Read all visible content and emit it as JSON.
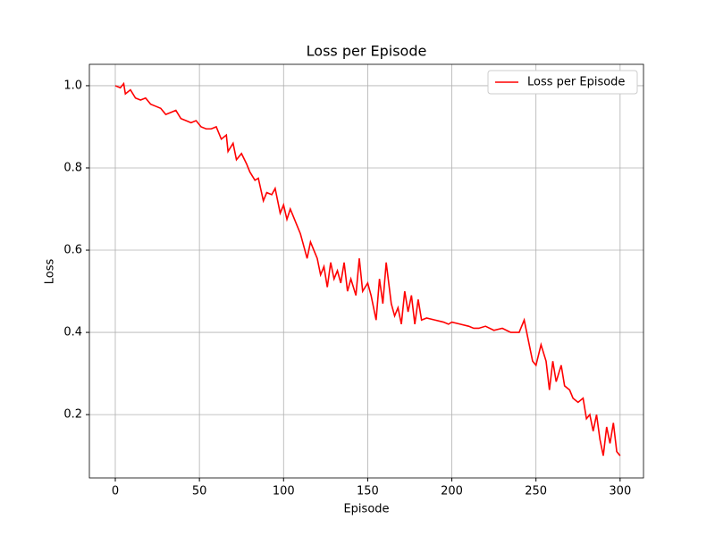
{
  "chart_data": {
    "type": "line",
    "title": "Loss per Episode",
    "x_label": "Episode",
    "y_label": "Loss",
    "x": [
      0,
      3,
      5,
      6,
      9,
      12,
      15,
      18,
      21,
      24,
      27,
      30,
      33,
      36,
      39,
      42,
      45,
      48,
      51,
      54,
      57,
      60,
      63,
      66,
      67,
      70,
      72,
      75,
      78,
      80,
      83,
      85,
      88,
      90,
      93,
      95,
      98,
      100,
      102,
      104,
      106,
      108,
      110,
      112,
      114,
      116,
      118,
      120,
      122,
      124,
      126,
      128,
      130,
      132,
      134,
      136,
      138,
      140,
      143,
      145,
      147,
      150,
      152,
      155,
      157,
      159,
      161,
      164,
      166,
      168,
      170,
      172,
      174,
      176,
      178,
      180,
      182,
      185,
      190,
      195,
      198,
      200,
      205,
      210,
      213,
      216,
      220,
      225,
      230,
      235,
      240,
      243,
      245,
      248,
      250,
      253,
      256,
      258,
      260,
      262,
      265,
      267,
      270,
      272,
      275,
      278,
      280,
      282,
      284,
      286,
      288,
      290,
      292,
      294,
      296,
      298,
      300
    ],
    "series": [
      {
        "name": "Loss per Episode",
        "color": "#ff0000",
        "values": [
          1.0,
          0.995,
          1.005,
          0.98,
          0.99,
          0.97,
          0.965,
          0.97,
          0.955,
          0.95,
          0.945,
          0.93,
          0.935,
          0.94,
          0.92,
          0.915,
          0.91,
          0.915,
          0.9,
          0.895,
          0.895,
          0.9,
          0.87,
          0.88,
          0.84,
          0.86,
          0.82,
          0.835,
          0.81,
          0.79,
          0.77,
          0.775,
          0.72,
          0.74,
          0.735,
          0.75,
          0.69,
          0.71,
          0.675,
          0.7,
          0.68,
          0.66,
          0.64,
          0.61,
          0.58,
          0.62,
          0.6,
          0.58,
          0.54,
          0.56,
          0.51,
          0.57,
          0.53,
          0.55,
          0.52,
          0.57,
          0.5,
          0.53,
          0.49,
          0.58,
          0.5,
          0.52,
          0.49,
          0.43,
          0.53,
          0.47,
          0.57,
          0.47,
          0.44,
          0.46,
          0.42,
          0.5,
          0.45,
          0.49,
          0.42,
          0.48,
          0.43,
          0.435,
          0.43,
          0.425,
          0.42,
          0.425,
          0.42,
          0.415,
          0.41,
          0.41,
          0.415,
          0.405,
          0.41,
          0.4,
          0.4,
          0.43,
          0.39,
          0.33,
          0.32,
          0.37,
          0.33,
          0.26,
          0.33,
          0.28,
          0.32,
          0.27,
          0.26,
          0.24,
          0.23,
          0.24,
          0.19,
          0.2,
          0.16,
          0.2,
          0.14,
          0.1,
          0.17,
          0.13,
          0.18,
          0.11,
          0.1
        ]
      }
    ],
    "xlim": [
      -15.4,
      313.9
    ],
    "ylim": [
      0.046,
      1.052
    ],
    "xticks": [
      0,
      50,
      100,
      150,
      200,
      250,
      300
    ],
    "yticks": [
      0.2,
      0.4,
      0.6,
      0.8,
      {
        "value": 1.0,
        "label": "1.0"
      }
    ],
    "grid": true,
    "legend": "upper right"
  }
}
